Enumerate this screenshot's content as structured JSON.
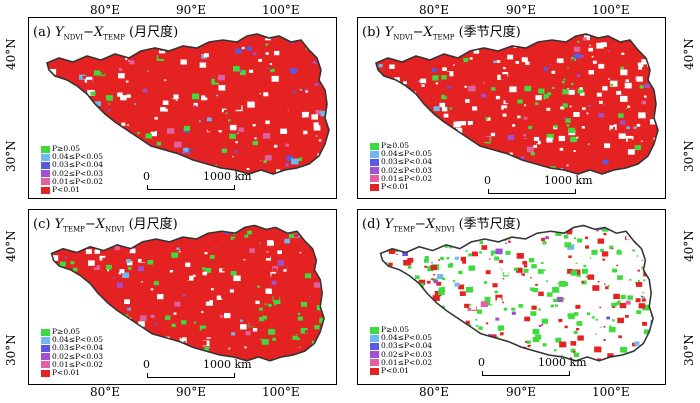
{
  "axes": {
    "lon_top": [
      "80°E",
      "90°E",
      "100°E"
    ],
    "lon_bottom": [
      "80°E",
      "90°E",
      "100°E"
    ],
    "lat_left_top": [
      "40°N",
      "30°N"
    ],
    "lat_left_bottom": [
      "40°N",
      "30°N"
    ],
    "lat_right_top": [
      "40°N",
      "30°N"
    ],
    "lat_right_bottom": [
      "40°N",
      "30°N"
    ]
  },
  "panels": [
    {
      "id": "a",
      "label": "(a)",
      "y_var": "Y",
      "y_sub": "NDVI",
      "x_var": "X",
      "x_sub": "TEMP",
      "scale_name": "(月尺度)",
      "dominant": "red"
    },
    {
      "id": "b",
      "label": "(b)",
      "y_var": "Y",
      "y_sub": "NDVI",
      "x_var": "X",
      "x_sub": "TEMP",
      "scale_name": "(季节尺度)",
      "dominant": "mixed"
    },
    {
      "id": "c",
      "label": "(c)",
      "y_var": "Y",
      "y_sub": "TEMP",
      "x_var": "X",
      "x_sub": "NDVI",
      "scale_name": "(月尺度)",
      "dominant": "red"
    },
    {
      "id": "d",
      "label": "(d)",
      "y_var": "Y",
      "y_sub": "TEMP",
      "x_var": "X",
      "x_sub": "NDVI",
      "scale_name": "(季节尺度)",
      "dominant": "green"
    }
  ],
  "legend": [
    {
      "label": "P≥0.05",
      "color": "#3ddb3d"
    },
    {
      "label": "0.04≤P<0.05",
      "color": "#6fb8f0"
    },
    {
      "label": "0.03≤P<0.04",
      "color": "#5a5ae0"
    },
    {
      "label": "0.02≤P<0.03",
      "color": "#a050d0"
    },
    {
      "label": "0.01≤P<0.02",
      "color": "#e060a0"
    },
    {
      "label": "P<0.01",
      "color": "#e52222"
    }
  ],
  "scale_bar": {
    "zero": "0",
    "label": "1000 km"
  },
  "minus_sign": "−",
  "colors": {
    "background": "#ffffff",
    "outline": "#333333"
  }
}
